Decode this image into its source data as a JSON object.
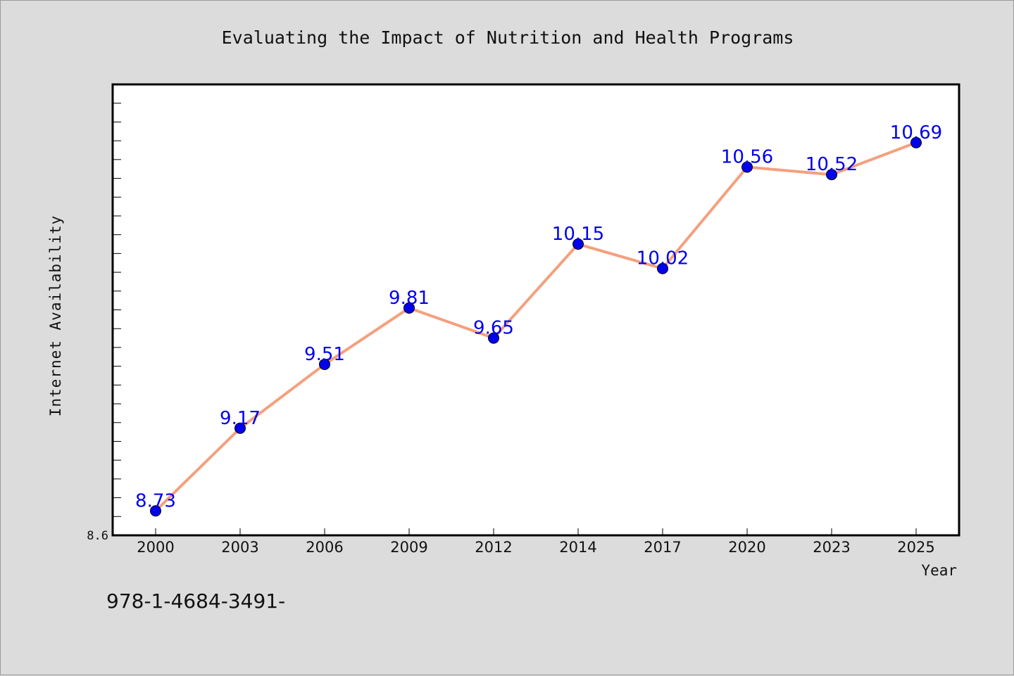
{
  "chart_data": {
    "type": "line",
    "title": "Evaluating the Impact of Nutrition and Health Programs",
    "xlabel": "Year",
    "ylabel": "Internet Availability",
    "categories": [
      "2000",
      "2003",
      "2006",
      "2009",
      "2012",
      "2014",
      "2017",
      "2020",
      "2023",
      "2025"
    ],
    "series": [
      {
        "values": [
          8.73,
          9.17,
          9.51,
          9.81,
          9.65,
          10.15,
          10.02,
          10.56,
          10.52,
          10.69
        ]
      }
    ],
    "data_labels": [
      "8.73",
      "9.17",
      "9.51",
      "9.81",
      "9.65",
      "10.15",
      "10.02",
      "10.56",
      "10.52",
      "10.69"
    ],
    "ylim": [
      8.6,
      11.0
    ],
    "y_tick_labels": [
      "8.6"
    ],
    "y_minor_step": 0.1,
    "grid": false,
    "line_color": "#f4a07e",
    "marker_color": "#0000ee",
    "label_color": "#0000ee"
  },
  "footer": {
    "text": "978-1-4684-3491-"
  },
  "colors": {
    "background": "#dcdcdc",
    "plot_bg": "#ffffff"
  }
}
